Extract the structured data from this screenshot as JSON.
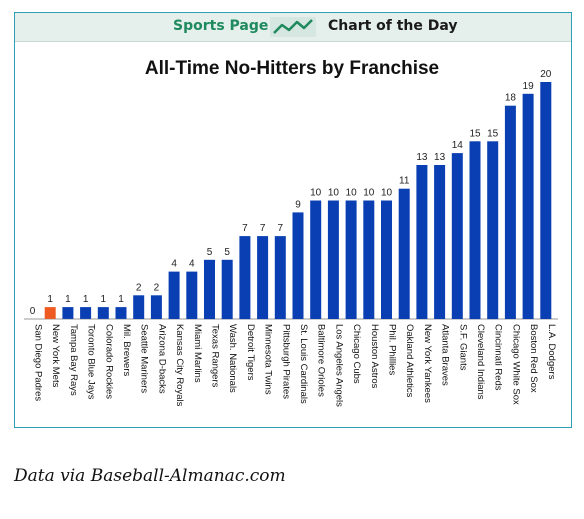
{
  "header": {
    "left_label": "Sports Page",
    "right_label": "Chart of the Day",
    "icon": "trend-line-icon"
  },
  "chart_data": {
    "type": "bar",
    "title": "All-Time No-Hitters by Franchise",
    "categories": [
      "San Diego Padres",
      "New York Mets",
      "Tampa Bay Rays",
      "Toronto Blue Jays",
      "Colorado Rockies",
      "Mil. Brewers",
      "Seattle Mariners",
      "Arizona D-backs",
      "Kansas City Royals",
      "Miami Marlins",
      "Texas Rangers",
      "Wash. Nationals",
      "Detroit Tigers",
      "Minnesota Twins",
      "Pittsburgh Pirates",
      "St. Louis Cardinals",
      "Baltimore Orioles",
      "Los Angeles Angels",
      "Chicago Cubs",
      "Houston Astros",
      "Phil. Phillies",
      "Oakland Athletics",
      "New York Yankees",
      "Atlanta Braves",
      "S.F. Giants",
      "Cleveland Indians",
      "Cincinnati Reds",
      "Chicago White Sox",
      "Boston Red Sox",
      "L.A. Dodgers"
    ],
    "values": [
      0,
      1,
      1,
      1,
      1,
      1,
      2,
      2,
      4,
      4,
      5,
      5,
      7,
      7,
      7,
      9,
      10,
      10,
      10,
      10,
      10,
      11,
      13,
      13,
      14,
      15,
      15,
      18,
      19,
      20
    ],
    "highlight_category": "New York Mets",
    "colors": {
      "bar": "#0a3fb3",
      "highlight": "#ef5a23"
    },
    "ylim": [
      0,
      20
    ],
    "grid": false,
    "xlabel": "",
    "ylabel": ""
  },
  "source": "Data via Baseball-Almanac.com"
}
